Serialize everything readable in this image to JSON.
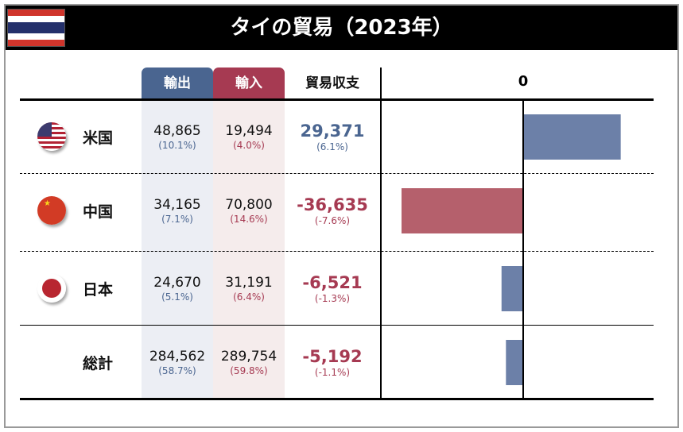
{
  "title": "タイの貿易（2023年）",
  "headers": {
    "export": "輸出",
    "import": "輸入",
    "balance": "貿易収支",
    "axis_zero": "0"
  },
  "colors": {
    "export": "#4a6590",
    "import": "#a63a52",
    "bar_blue": "#6c80a8",
    "bar_red": "#b5606c"
  },
  "rows": [
    {
      "name": "米国",
      "flag": "us-flag-icon",
      "export": "48,865",
      "export_pct": "(10.1%)",
      "import": "19,494",
      "import_pct": "(4.0%)",
      "balance": "29,371",
      "balance_pct": "(6.1%)"
    },
    {
      "name": "中国",
      "flag": "china-flag-icon",
      "export": "34,165",
      "export_pct": "(7.1%)",
      "import": "70,800",
      "import_pct": "(14.6%)",
      "balance": "-36,635",
      "balance_pct": "(-7.6%)"
    },
    {
      "name": "日本",
      "flag": "japan-flag-icon",
      "export": "24,670",
      "export_pct": "(5.1%)",
      "import": "31,191",
      "import_pct": "(6.4%)",
      "balance": "-6,521",
      "balance_pct": "(-1.3%)"
    },
    {
      "name": "総計",
      "flag": "",
      "export": "284,562",
      "export_pct": "(58.7%)",
      "import": "289,754",
      "import_pct": "(59.8%)",
      "balance": "-5,192",
      "balance_pct": "(-1.1%)"
    }
  ],
  "chart_data": {
    "type": "bar",
    "orientation": "horizontal",
    "categories": [
      "米国",
      "中国",
      "日本",
      "総計"
    ],
    "values": [
      29371,
      -36635,
      -6521,
      -5192
    ],
    "bar_colors": [
      "#6c80a8",
      "#b5606c",
      "#6c80a8",
      "#6c80a8"
    ],
    "tick_labels": [
      "0"
    ],
    "grid": false
  }
}
